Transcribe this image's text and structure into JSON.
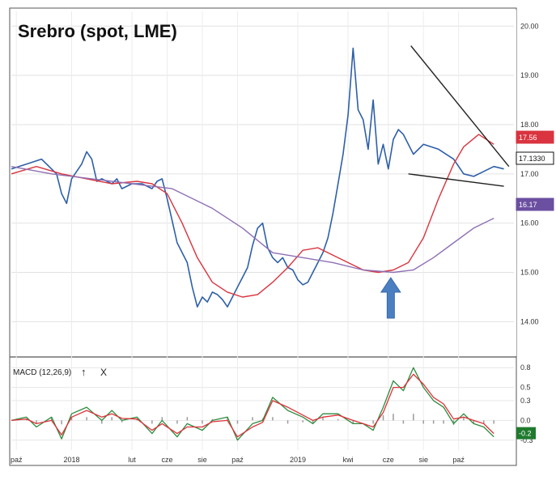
{
  "chart_data": [
    {
      "type": "line",
      "title": "Srebro (spot, LME)",
      "ylim": [
        13.3,
        20.3
      ],
      "y_ticks": [
        "20.00",
        "19.00",
        "18.00",
        "17.00",
        "16.00",
        "15.00",
        "14.00"
      ],
      "x_ticks": [
        "paź",
        "2018",
        "lut",
        "cze",
        "sie",
        "paź",
        "2019",
        "kwi",
        "cze",
        "sie",
        "paź"
      ],
      "grid": true,
      "series": [
        {
          "name": "",
          "color": "#2d5fa8",
          "role": "price",
          "x": [
            0,
            3,
            6,
            9,
            10,
            11,
            12,
            14,
            15,
            16,
            17,
            18,
            20,
            21,
            22,
            24,
            26,
            27,
            28,
            29,
            30,
            31,
            32,
            33,
            35,
            36,
            37,
            38,
            39,
            40,
            41,
            42,
            43,
            44,
            45,
            46,
            47,
            48,
            49,
            50,
            51,
            52,
            53,
            54,
            55,
            56,
            57,
            58,
            59,
            60,
            61,
            62,
            63,
            64,
            65,
            66,
            67,
            68,
            69,
            70,
            71,
            72,
            73,
            74,
            75,
            76,
            77,
            78,
            80,
            82,
            85,
            88,
            90,
            92,
            94,
            96,
            98
          ],
          "y": [
            17.1,
            17.2,
            17.3,
            17.0,
            16.6,
            16.4,
            16.9,
            17.2,
            17.45,
            17.3,
            16.85,
            16.9,
            16.8,
            16.9,
            16.7,
            16.8,
            16.8,
            16.75,
            16.7,
            16.85,
            16.9,
            16.5,
            16.05,
            15.6,
            15.2,
            14.7,
            14.3,
            14.5,
            14.4,
            14.6,
            14.55,
            14.45,
            14.3,
            14.5,
            14.7,
            14.9,
            15.1,
            15.55,
            15.9,
            16.0,
            15.5,
            15.3,
            15.2,
            15.3,
            15.1,
            15.05,
            14.85,
            14.75,
            14.8,
            15.0,
            15.2,
            15.4,
            15.7,
            16.2,
            16.8,
            17.4,
            18.2,
            19.55,
            18.3,
            18.1,
            17.5,
            18.5,
            17.2,
            17.6,
            17.1,
            17.7,
            17.9,
            17.8,
            17.4,
            17.6,
            17.5,
            17.3,
            17.0,
            16.95,
            17.05,
            17.15,
            17.1
          ]
        },
        {
          "name": "",
          "color": "#d9343f",
          "role": "short moving average",
          "x": [
            0,
            5,
            10,
            15,
            20,
            25,
            28,
            31,
            34,
            37,
            40,
            43,
            46,
            49,
            52,
            55,
            58,
            61,
            64,
            67,
            70,
            73,
            76,
            79,
            82,
            85,
            88,
            90,
            93,
            96
          ],
          "y": [
            17.0,
            17.15,
            17.0,
            16.9,
            16.8,
            16.85,
            16.8,
            16.6,
            16.0,
            15.3,
            14.8,
            14.6,
            14.5,
            14.55,
            14.8,
            15.1,
            15.45,
            15.5,
            15.35,
            15.2,
            15.05,
            15.0,
            15.05,
            15.2,
            15.7,
            16.5,
            17.2,
            17.55,
            17.8,
            17.6
          ]
        },
        {
          "name": "",
          "color": "#8e6fb3",
          "role": "long moving average",
          "x": [
            0,
            8,
            16,
            24,
            32,
            40,
            46,
            52,
            58,
            64,
            70,
            76,
            80,
            84,
            88,
            92,
            96
          ],
          "y": [
            17.15,
            17.0,
            16.9,
            16.8,
            16.7,
            16.3,
            15.9,
            15.4,
            15.3,
            15.2,
            15.05,
            15.0,
            15.05,
            15.3,
            15.6,
            15.9,
            16.1
          ]
        }
      ],
      "annotations": {
        "last_values": [
          {
            "label": "17.56",
            "color": "#d9343f"
          },
          {
            "label": "17.1330",
            "color": "#111111"
          },
          {
            "label": "16.17",
            "color": "#6b4fa0"
          }
        ],
        "trendlines": [
          {
            "from": [
              79.5,
              19.6
            ],
            "to": [
              99,
              17.15
            ]
          },
          {
            "from": [
              79,
              17.0
            ],
            "to": [
              98,
              16.75
            ]
          }
        ],
        "arrow": {
          "direction": "up",
          "color": "#4a7fc1",
          "at_x": 75.5
        }
      }
    },
    {
      "type": "line",
      "title": "MACD (12,26,9)",
      "ylim": [
        -0.45,
        0.95
      ],
      "y_ticks": [
        "0.8",
        "0.5",
        "0.3",
        "0.0",
        "-0.3"
      ],
      "grid": true,
      "histogram_color": "#9a9a9a",
      "last_value": {
        "label": "-0.2",
        "color": "#1f7a2e"
      },
      "series": [
        {
          "name": "",
          "color": "#2e8b3e",
          "x": [
            0,
            3,
            5,
            8,
            10,
            12,
            15,
            18,
            20,
            22,
            25,
            28,
            30,
            33,
            35,
            38,
            40,
            43,
            45,
            48,
            50,
            52,
            55,
            58,
            60,
            62,
            65,
            68,
            70,
            72,
            74,
            76,
            78,
            80,
            82,
            84,
            86,
            88,
            90,
            92,
            94,
            96
          ],
          "y": [
            0.0,
            0.05,
            -0.1,
            0.05,
            -0.28,
            0.1,
            0.2,
            0.0,
            0.15,
            0.0,
            0.05,
            -0.2,
            0.0,
            -0.25,
            -0.05,
            -0.15,
            0.0,
            0.05,
            -0.3,
            -0.05,
            0.0,
            0.35,
            0.15,
            0.05,
            -0.05,
            0.1,
            0.1,
            -0.05,
            -0.05,
            -0.15,
            0.2,
            0.6,
            0.45,
            0.8,
            0.5,
            0.3,
            0.2,
            -0.05,
            0.1,
            -0.05,
            -0.1,
            -0.25
          ]
        },
        {
          "name": "",
          "color": "#e0323b",
          "x": [
            0,
            3,
            5,
            8,
            10,
            12,
            15,
            18,
            20,
            22,
            25,
            28,
            30,
            33,
            35,
            38,
            40,
            43,
            45,
            48,
            50,
            52,
            55,
            58,
            60,
            62,
            65,
            68,
            70,
            72,
            74,
            76,
            78,
            80,
            82,
            84,
            86,
            88,
            90,
            92,
            94,
            96
          ],
          "y": [
            0.0,
            0.02,
            -0.05,
            0.0,
            -0.22,
            0.05,
            0.15,
            0.05,
            0.1,
            0.03,
            0.02,
            -0.15,
            -0.05,
            -0.2,
            -0.1,
            -0.1,
            -0.02,
            0.0,
            -0.25,
            -0.1,
            -0.03,
            0.3,
            0.2,
            0.08,
            0.0,
            0.05,
            0.08,
            0.0,
            -0.05,
            -0.1,
            0.12,
            0.5,
            0.5,
            0.7,
            0.55,
            0.35,
            0.25,
            0.02,
            0.05,
            0.0,
            -0.05,
            -0.2
          ]
        }
      ]
    }
  ]
}
